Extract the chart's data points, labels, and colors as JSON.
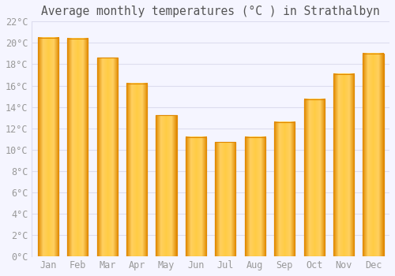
{
  "title": "Average monthly temperatures (°C ) in Strathalbyn",
  "months": [
    "Jan",
    "Feb",
    "Mar",
    "Apr",
    "May",
    "Jun",
    "Jul",
    "Aug",
    "Sep",
    "Oct",
    "Nov",
    "Dec"
  ],
  "values": [
    20.5,
    20.4,
    18.6,
    16.2,
    13.2,
    11.2,
    10.7,
    11.2,
    12.6,
    14.7,
    17.1,
    19.0
  ],
  "bar_color": "#FFAA00",
  "bar_edge_color": "#E08800",
  "background_color": "#F5F5FF",
  "plot_bg_color": "#FAFAFA",
  "grid_color": "#DDDDEE",
  "tick_label_color": "#999999",
  "title_color": "#555555",
  "ylim": [
    0,
    22
  ],
  "ytick_step": 2,
  "title_fontsize": 10.5,
  "tick_fontsize": 8.5,
  "bar_width": 0.7
}
